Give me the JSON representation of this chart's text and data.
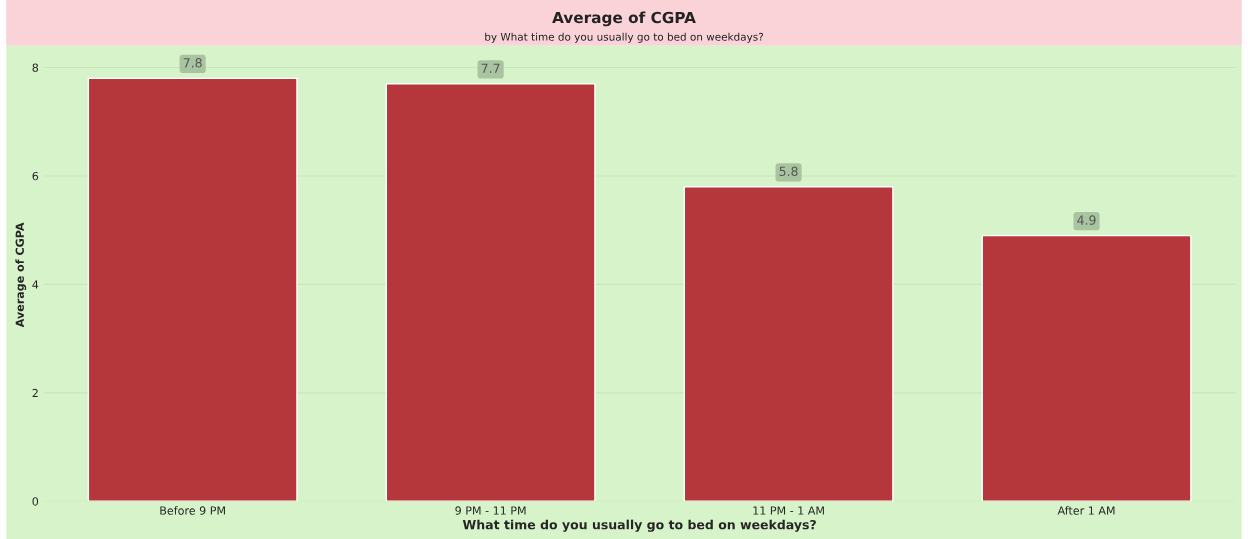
{
  "chart_data": {
    "type": "bar",
    "title": "Average of CGPA",
    "subtitle": "by What time do you usually go to bed on weekdays?",
    "xlabel": "What time do you usually go to bed on weekdays?",
    "ylabel": "Average of CGPA",
    "categories": [
      "Before 9 PM",
      "9 PM - 11 PM",
      "11 PM - 1 AM",
      "After 1 AM"
    ],
    "values": [
      7.8,
      7.7,
      5.8,
      4.9
    ],
    "color": "#b5373b",
    "ylim": [
      0,
      8.35
    ],
    "yticks": [
      0,
      2,
      4,
      6,
      8
    ],
    "grid": "y",
    "data_labels": true
  }
}
